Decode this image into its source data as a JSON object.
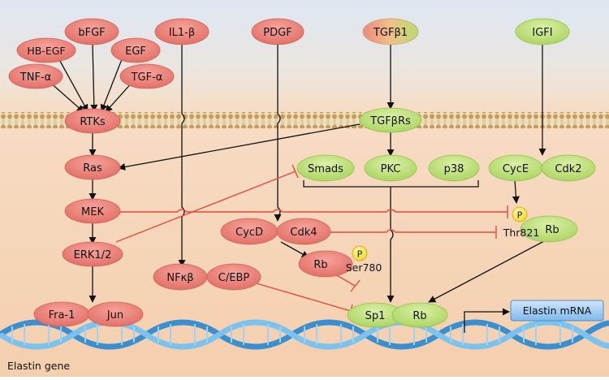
{
  "nodes": {
    "bfgf": "bFGF",
    "il1b": "IL1-β",
    "pdgf": "PDGF",
    "tgfb1": "TGFβ1",
    "igfi": "IGFI",
    "hbegf": "HB-EGF",
    "egf": "EGF",
    "tnfa": "TNF-α",
    "tgfa": "TGF-α",
    "rtks": "RTKs",
    "tgfbrs": "TGFβRs",
    "ras": "Ras",
    "smads": "Smads",
    "pkc": "PKC",
    "p38": "p38",
    "cyce": "CycE",
    "cdk2": "Cdk2",
    "mek": "MEK",
    "cycd": "CycD",
    "cdk4": "Cdk4",
    "rb_thr": "Rb",
    "erk": "ERK1/2",
    "rb_ser": "Rb",
    "nfkb": "NFκβ",
    "cebp": "C/EBP",
    "fra1": "Fra-1",
    "jun": "Jun",
    "sp1": "Sp1",
    "rb_sp1": "Rb"
  },
  "labels": {
    "phospho": "P",
    "thr821": "Thr821",
    "ser780": "Ser780",
    "elastin_mrna": "Elastin mRNA",
    "elastin_gene": "Elastin gene"
  },
  "colors": {
    "red_node": "#e8776e",
    "green_node": "#b5dc6b",
    "inhibit_line": "#e8493c",
    "activate_line": "#111111",
    "membrane": "#c9a36a",
    "cytoplasm": "#f6d3b5",
    "extracellular": "#dfe9f4",
    "dna": "#4aa3df",
    "phospho": "#f5e23a"
  }
}
